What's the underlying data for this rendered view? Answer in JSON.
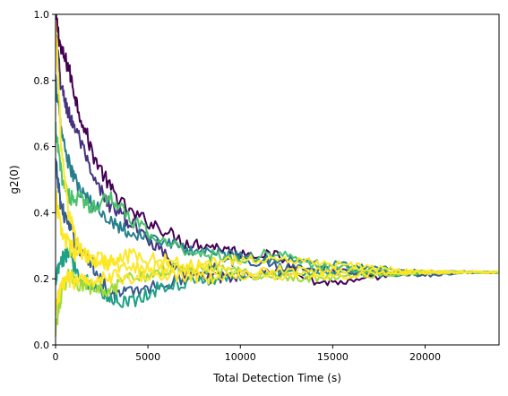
{
  "chart_data": {
    "type": "line",
    "title": "",
    "xlabel": "Total Detection Time (s)",
    "ylabel": "g2(0)",
    "xlim": [
      0,
      24000
    ],
    "ylim": [
      0,
      1.0
    ],
    "x_ticks": [
      0,
      5000,
      10000,
      15000,
      20000
    ],
    "x_tick_labels": [
      "0",
      "5000",
      "10000",
      "15000",
      "20000"
    ],
    "y_ticks": [
      0.0,
      0.2,
      0.4,
      0.6,
      0.8,
      1.0
    ],
    "y_tick_labels": [
      "0.0",
      "0.2",
      "0.4",
      "0.6",
      "0.8",
      "1.0"
    ],
    "grid": false,
    "legend": "none",
    "colormap": "viridis",
    "colors": [
      "#440154",
      "#46327e",
      "#365c8d",
      "#277f8e",
      "#1fa187",
      "#4ac16d",
      "#a0da39",
      "#fde725"
    ],
    "series": [
      {
        "color": "#440154",
        "x": [
          0,
          300,
          700,
          1200,
          2000,
          3000,
          4000,
          5500,
          7000,
          8500,
          10000,
          12000,
          14000,
          16000,
          18000,
          20000,
          22000,
          24000
        ],
        "values": [
          1.0,
          0.89,
          0.84,
          0.72,
          0.58,
          0.47,
          0.4,
          0.36,
          0.31,
          0.3,
          0.28,
          0.27,
          0.19,
          0.19,
          0.21,
          0.22,
          0.22,
          0.22
        ]
      },
      {
        "color": "#46327e",
        "x": [
          0,
          300,
          700,
          1200,
          2000,
          3000,
          4000,
          5500,
          7000,
          8500,
          10000,
          12000,
          14000,
          16000,
          18000,
          20000,
          22000,
          24000
        ],
        "values": [
          0.95,
          0.78,
          0.7,
          0.64,
          0.5,
          0.42,
          0.37,
          0.3,
          0.22,
          0.2,
          0.21,
          0.22,
          0.23,
          0.22,
          0.22,
          0.22,
          0.22,
          0.22
        ]
      },
      {
        "color": "#365c8d",
        "x": [
          0,
          300,
          700,
          1200,
          2000,
          3000,
          4000,
          5500,
          7000,
          8500,
          10000,
          12000,
          14000,
          16000,
          18000,
          20000,
          22000,
          24000
        ],
        "values": [
          0.55,
          0.42,
          0.36,
          0.3,
          0.24,
          0.15,
          0.16,
          0.18,
          0.2,
          0.24,
          0.26,
          0.24,
          0.23,
          0.22,
          0.22,
          0.21,
          0.22,
          0.22
        ]
      },
      {
        "color": "#277f8e",
        "x": [
          0,
          300,
          700,
          1200,
          2000,
          3000,
          4000,
          5500,
          7000,
          8500,
          10000,
          12000,
          14000,
          16000,
          18000,
          20000,
          22000,
          24000
        ],
        "values": [
          0.8,
          0.65,
          0.55,
          0.48,
          0.42,
          0.38,
          0.34,
          0.32,
          0.29,
          0.28,
          0.27,
          0.26,
          0.25,
          0.24,
          0.23,
          0.22,
          0.22,
          0.22
        ]
      },
      {
        "color": "#1fa187",
        "x": [
          0,
          300,
          700,
          1200,
          2000,
          3000,
          4000,
          5500,
          7000,
          8500,
          10000,
          12000,
          14000,
          16000,
          18000,
          20000,
          22000,
          24000
        ],
        "values": [
          0.2,
          0.25,
          0.28,
          0.22,
          0.18,
          0.14,
          0.13,
          0.17,
          0.19,
          0.2,
          0.21,
          0.21,
          0.22,
          0.22,
          0.21,
          0.22,
          0.22,
          0.22
        ]
      },
      {
        "color": "#4ac16d",
        "x": [
          0,
          300,
          700,
          1200,
          2000,
          3000,
          4000,
          5500,
          7000,
          8500,
          10000,
          12000,
          14000,
          16000,
          18000,
          20000,
          22000,
          24000
        ],
        "values": [
          0.65,
          0.52,
          0.45,
          0.44,
          0.42,
          0.45,
          0.38,
          0.32,
          0.29,
          0.27,
          0.26,
          0.28,
          0.24,
          0.23,
          0.22,
          0.22,
          0.22,
          0.22
        ]
      },
      {
        "color": "#a0da39",
        "x": [
          0,
          300,
          700,
          1200,
          2000,
          3000,
          4000,
          5500,
          7000,
          8500,
          10000,
          12000,
          14000,
          16000,
          18000,
          20000,
          22000,
          24000
        ],
        "values": [
          0.05,
          0.15,
          0.22,
          0.18,
          0.17,
          0.16,
          0.2,
          0.22,
          0.24,
          0.23,
          0.22,
          0.21,
          0.2,
          0.21,
          0.21,
          0.22,
          0.22,
          0.22
        ]
      },
      {
        "color": "#fde725",
        "x": [
          0,
          300,
          700,
          1200,
          2000,
          3000,
          4000,
          5500,
          7000,
          8500,
          10000,
          12000,
          14000,
          16000,
          18000,
          20000,
          22000,
          24000
        ],
        "values": [
          0.45,
          0.35,
          0.3,
          0.27,
          0.25,
          0.24,
          0.24,
          0.23,
          0.23,
          0.23,
          0.22,
          0.23,
          0.22,
          0.23,
          0.22,
          0.22,
          0.22,
          0.22
        ]
      },
      {
        "color": "#fde725",
        "x": [
          0,
          300,
          700,
          1200,
          2000,
          3000,
          4000,
          5500,
          7000,
          8500,
          10000,
          12000,
          14000,
          16000,
          18000,
          20000,
          22000,
          24000
        ],
        "values": [
          1.0,
          0.6,
          0.4,
          0.3,
          0.26,
          0.25,
          0.27,
          0.26,
          0.24,
          0.25,
          0.26,
          0.26,
          0.25,
          0.24,
          0.23,
          0.22,
          0.22,
          0.22
        ]
      },
      {
        "color": "#fde725",
        "x": [
          0,
          300,
          700,
          1200,
          2000,
          3000,
          4000,
          5500,
          7000,
          8500,
          10000,
          12000,
          14000,
          16000,
          18000,
          20000,
          22000,
          24000
        ],
        "values": [
          0.1,
          0.18,
          0.2,
          0.19,
          0.2,
          0.21,
          0.2,
          0.21,
          0.21,
          0.2,
          0.21,
          0.21,
          0.21,
          0.21,
          0.22,
          0.22,
          0.22,
          0.22
        ]
      }
    ]
  }
}
